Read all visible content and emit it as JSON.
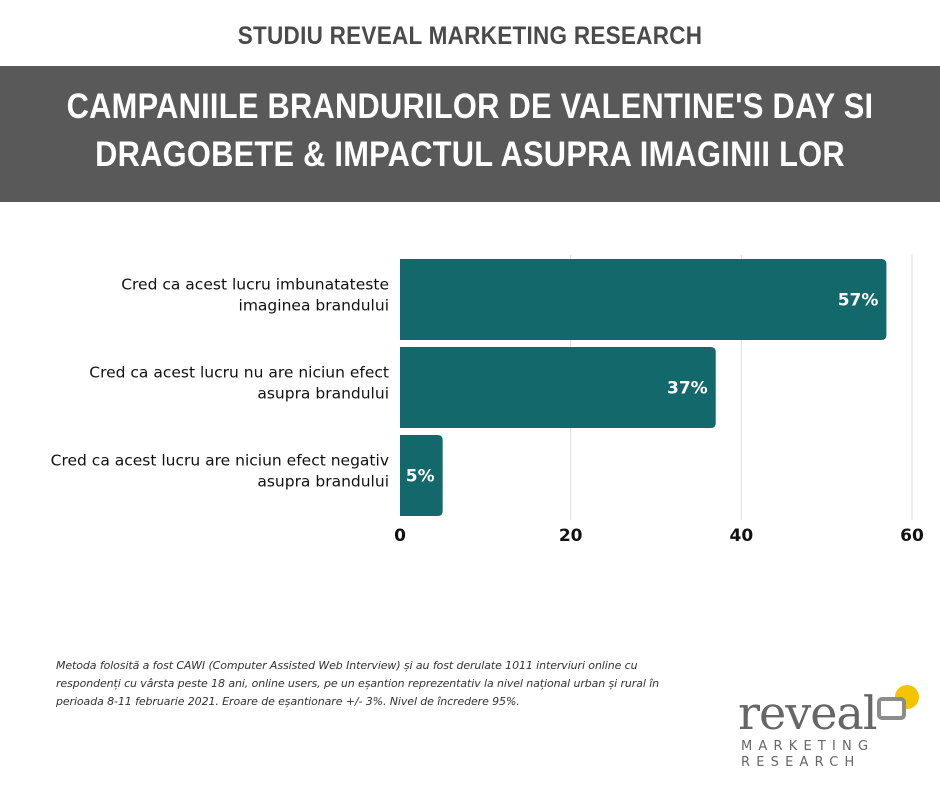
{
  "header": {
    "kicker": "STUDIU REVEAL MARKETING RESEARCH",
    "title_line1": "CAMPANIILE BRANDURILOR DE VALENTINE'S DAY SI",
    "title_line2": "DRAGOBETE & IMPACTUL ASUPRA IMAGINII LOR"
  },
  "colors": {
    "bar": "#12686a",
    "banner": "#595959",
    "grid": "#dddddd",
    "logo_accent": "#f5c400",
    "logo_gray": "#8c8c8c"
  },
  "chart_data": {
    "type": "bar",
    "orientation": "horizontal",
    "categories": [
      [
        "Cred ca acest lucru imbunatateste",
        "imaginea brandului"
      ],
      [
        "Cred ca acest lucru nu are niciun efect",
        "asupra brandului"
      ],
      [
        "Cred ca acest lucru are niciun efect negativ",
        "asupra brandului"
      ]
    ],
    "values": [
      57,
      37,
      5
    ],
    "value_labels": [
      "57%",
      "37%",
      "5%"
    ],
    "xlim": [
      0,
      60
    ],
    "xticks": [
      0,
      20,
      40,
      60
    ],
    "xtick_labels": [
      "0",
      "20",
      "40",
      "60"
    ],
    "grid": true
  },
  "footer": {
    "methodology": "Metoda folosită a fost CAWI (Computer Assisted Web Interview) și au fost derulate 1011 interviuri online cu respondenți cu vârsta peste 18 ani, online users, pe un eșantion reprezentativ la nivel național urban și rural în perioada 8-11 februarie 2021. Eroare de eșantionare +/- 3%. Nivel de încredere 95%."
  },
  "logo": {
    "word": "reveal",
    "line1": "MARKETING",
    "line2": "RESEARCH"
  }
}
